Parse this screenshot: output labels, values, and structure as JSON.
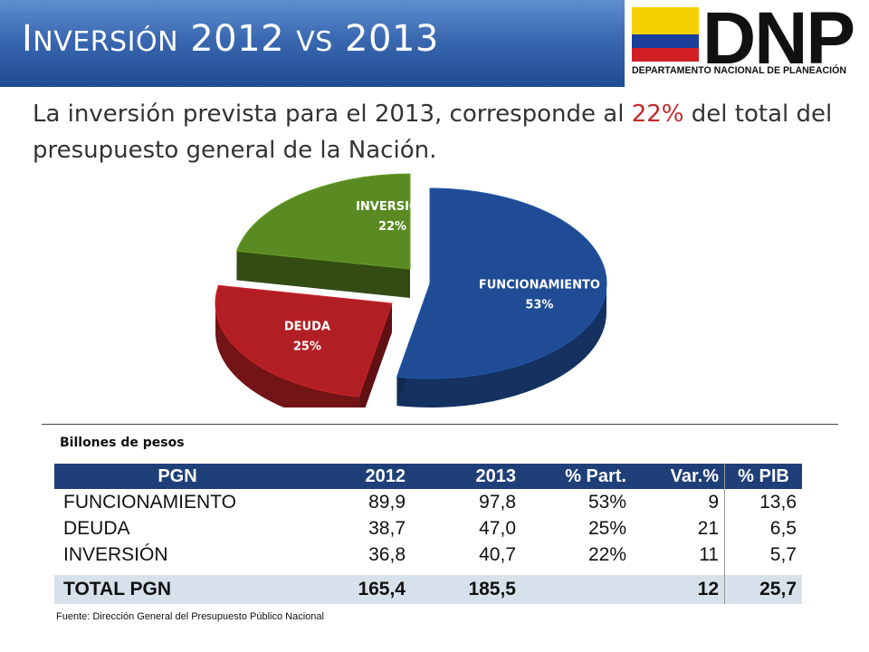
{
  "header": {
    "title_first": "I",
    "title_small": "NVERSIÓN",
    "title_mid": " 2012 ",
    "title_vs": "VS",
    "title_end": " 2013",
    "logo_text": "DNP",
    "logo_subtitle": "DEPARTAMENTO NACIONAL DE PLANEACIÓN"
  },
  "subtitle": {
    "before": "La inversión prevista para el 2013, corresponde al ",
    "highlight": "22%",
    "after": " del total del presupuesto general de la Nación."
  },
  "colors": {
    "funcionamiento": "#1f4c94",
    "deuda": "#b11f24",
    "inversion": "#5a8a22",
    "header": "#1f3f78",
    "highlight": "#c0282a"
  },
  "chart_data": {
    "type": "pie",
    "labels": [
      "FUNCIONAMIENTO",
      "DEUDA",
      "INVERSIÓN"
    ],
    "values": [
      53,
      25,
      22
    ],
    "value_labels": [
      "53%",
      "25%",
      "22%"
    ]
  },
  "table": {
    "units": "Billones de pesos",
    "headers": [
      "PGN",
      "2012",
      "2013",
      "% Part.",
      "Var.%",
      "% PIB"
    ],
    "rows": [
      [
        "FUNCIONAMIENTO",
        "89,9",
        "97,8",
        "53%",
        "9",
        "13,6"
      ],
      [
        "DEUDA",
        "38,7",
        "47,0",
        "25%",
        "21",
        "6,5"
      ],
      [
        "INVERSIÓN",
        "36,8",
        "40,7",
        "22%",
        "11",
        "5,7"
      ]
    ],
    "total": [
      "TOTAL PGN",
      "165,4",
      "185,5",
      "",
      "12",
      "25,7"
    ]
  },
  "source": "Fuente: Dirección General del Presupuesto Público Nacional"
}
